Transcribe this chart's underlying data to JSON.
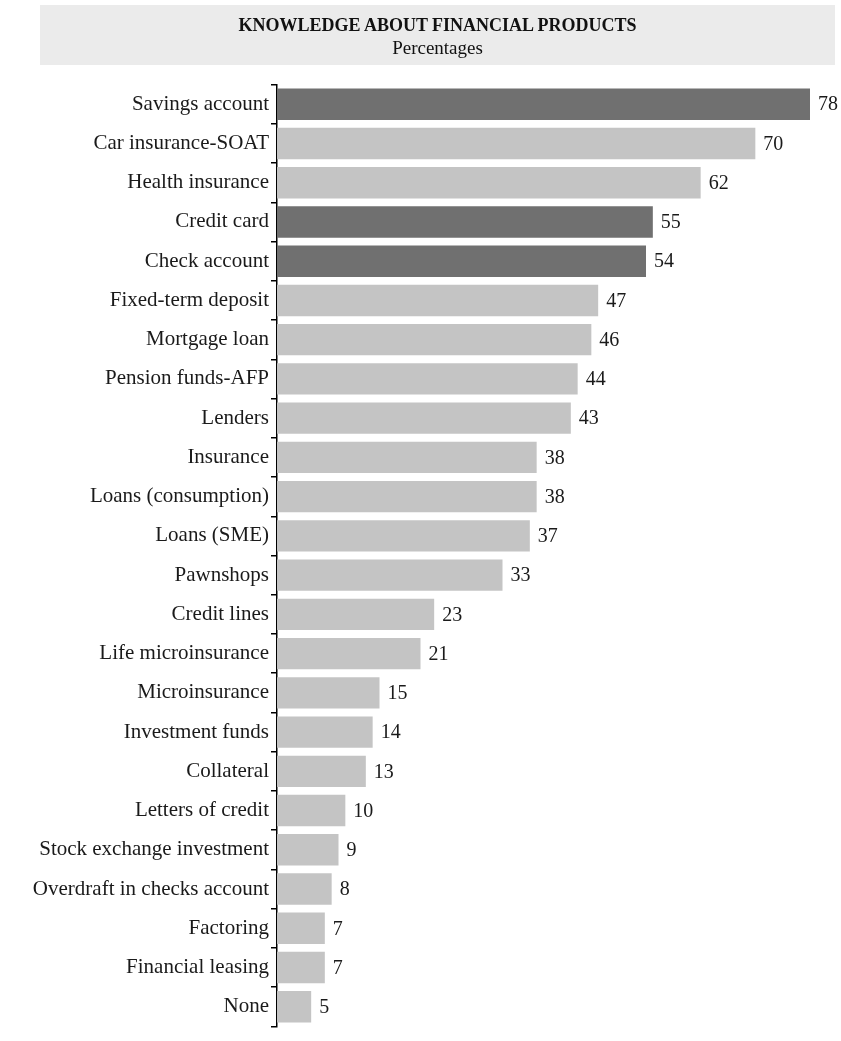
{
  "chart_data": {
    "type": "bar",
    "orientation": "horizontal",
    "title": "KNOWLEDGE ABOUT FINANCIAL PRODUCTS",
    "subtitle": "Percentages",
    "categories": [
      "Savings account",
      "Car insurance-SOAT",
      "Health insurance",
      "Credit card",
      "Check account",
      "Fixed-term deposit",
      "Mortgage loan",
      "Pension funds-AFP",
      "Lenders",
      "Insurance",
      "Loans (consumption)",
      "Loans (SME)",
      "Pawnshops",
      "Credit lines",
      "Life microinsurance",
      "Microinsurance",
      "Investment funds",
      "Collateral",
      "Letters of credit",
      "Stock exchange investment",
      "Overdraft in checks account",
      "Factoring",
      "Financial leasing",
      "None"
    ],
    "values": [
      78,
      70,
      62,
      55,
      54,
      47,
      46,
      44,
      43,
      38,
      38,
      37,
      33,
      23,
      21,
      15,
      14,
      13,
      10,
      9,
      8,
      7,
      7,
      5
    ],
    "colors": [
      "#707070",
      "#c4c4c4",
      "#c4c4c4",
      "#707070",
      "#707070",
      "#c4c4c4",
      "#c4c4c4",
      "#c4c4c4",
      "#c4c4c4",
      "#c4c4c4",
      "#c4c4c4",
      "#c4c4c4",
      "#c4c4c4",
      "#c4c4c4",
      "#c4c4c4",
      "#c4c4c4",
      "#c4c4c4",
      "#c4c4c4",
      "#c4c4c4",
      "#c4c4c4",
      "#c4c4c4",
      "#c4c4c4",
      "#c4c4c4",
      "#c4c4c4"
    ],
    "data_labels": true
  }
}
